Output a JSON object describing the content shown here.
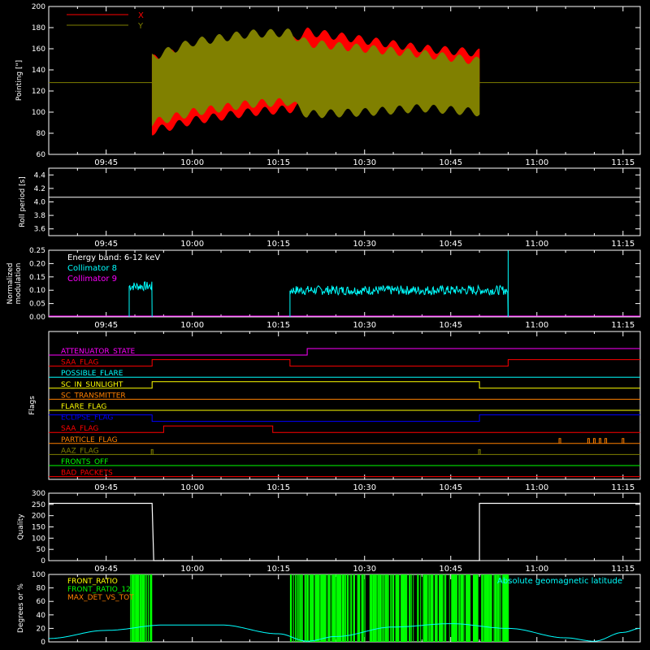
{
  "colors": {
    "background": "#000000",
    "axis": "#ffffff",
    "x": "#ff0000",
    "y": "#808000",
    "cyan": "#00ffff",
    "magenta": "#ff00ff",
    "green": "#00ff00",
    "orange": "#ff8000",
    "yellow": "#ffff00",
    "blue": "#0000ff",
    "red": "#ff0000",
    "olive": "#808000"
  },
  "time_axis": {
    "start": "09:35",
    "end": "11:18",
    "tick_labels": [
      "09:45",
      "10:00",
      "10:15",
      "10:30",
      "10:45",
      "11:00",
      "11:15"
    ]
  },
  "chart_data": [
    {
      "type": "line",
      "id": "pointing",
      "ylabel": "Pointing [\"]",
      "ylim": [
        60,
        200
      ],
      "yticks": [
        60,
        80,
        100,
        120,
        140,
        160,
        180,
        200
      ],
      "legend": {
        "placement": "top-left"
      },
      "series": [
        {
          "name": "X",
          "color": "#ff0000",
          "x_start": "09:53",
          "x_end": "10:50",
          "points": [
            [
              "09:53",
              82,
              150
            ],
            [
              "10:00",
              92,
              162
            ],
            [
              "10:10",
              100,
              166
            ],
            [
              "10:17",
              103,
              168
            ],
            [
              "10:20",
              108,
              176
            ],
            [
              "10:30",
              118,
              168
            ],
            [
              "10:40",
              124,
              160
            ],
            [
              "10:50",
              128,
              156
            ]
          ]
        },
        {
          "name": "Y",
          "color": "#808000",
          "x_start": "09:53",
          "x_end": "10:50",
          "points": [
            [
              "09:53",
              90,
              152
            ],
            [
              "10:00",
              100,
              166
            ],
            [
              "10:10",
              108,
              174
            ],
            [
              "10:17",
              110,
              175
            ],
            [
              "10:20",
              98,
              165
            ],
            [
              "10:30",
              100,
              160
            ],
            [
              "10:40",
              104,
              155
            ],
            [
              "10:50",
              100,
              148
            ]
          ]
        }
      ],
      "baseline": {
        "value": 128,
        "color": "#808000"
      }
    },
    {
      "type": "line",
      "id": "roll-period",
      "ylabel": "Roll period [s]",
      "ylim": [
        3.5,
        4.5
      ],
      "yticks": [
        3.6,
        3.8,
        4.0,
        4.2,
        4.4
      ],
      "series": [
        {
          "color": "#ffffff",
          "x": [
            "09:35",
            "11:18"
          ],
          "y": [
            4.07,
            4.07
          ]
        }
      ]
    },
    {
      "type": "line",
      "id": "modulation",
      "ylabel": "Normalized modulation",
      "ylim": [
        0,
        0.25
      ],
      "yticks": [
        0.0,
        0.05,
        0.1,
        0.15,
        0.2,
        0.25
      ],
      "annotation": "Energy band: 6-12 keV",
      "series": [
        {
          "name": "Collimator 8",
          "color": "#00ffff",
          "segments": [
            [
              "09:49",
              "09:53",
              0.115
            ],
            [
              "10:17",
              "10:55",
              0.1
            ]
          ],
          "spikes": [
            [
              "10:55",
              0.25
            ]
          ]
        },
        {
          "name": "Collimator 9",
          "color": "#ff00ff",
          "x": [
            "09:35",
            "11:18"
          ],
          "y": [
            0,
            0
          ]
        }
      ]
    },
    {
      "type": "table",
      "id": "flags",
      "ylabel": "Flags",
      "rows": [
        {
          "label": "ATTENUATOR_STATE",
          "color": "#ff00ff",
          "steps": [
            [
              "09:35",
              0
            ],
            [
              "10:20",
              1
            ]
          ]
        },
        {
          "label": "SAA_FLAG",
          "color": "#ff0000",
          "steps": [
            [
              "09:35",
              0
            ],
            [
              "09:53",
              1
            ],
            [
              "10:17",
              0
            ],
            [
              "10:55",
              1
            ]
          ]
        },
        {
          "label": "POSSIBLE_FLARE",
          "color": "#00ffff",
          "steps": [
            [
              "09:35",
              0
            ]
          ]
        },
        {
          "label": "SC_IN_SUNLIGHT",
          "color": "#ffff00",
          "steps": [
            [
              "09:35",
              0
            ],
            [
              "09:53",
              1
            ],
            [
              "10:50",
              0
            ]
          ]
        },
        {
          "label": "SC_TRANSMITTER",
          "color": "#ff8000",
          "steps": [
            [
              "09:35",
              0
            ]
          ]
        },
        {
          "label": "FLARE_FLAG",
          "color": "#ffff00",
          "steps": [
            [
              "09:35",
              0
            ]
          ]
        },
        {
          "label": "ECLIPSE_FLAG",
          "color": "#0000ff",
          "steps": [
            [
              "09:35",
              1
            ],
            [
              "09:53",
              0
            ],
            [
              "10:50",
              1
            ]
          ]
        },
        {
          "label": "SAA_FLAG",
          "color": "#ff0000",
          "steps": [
            [
              "09:35",
              0
            ],
            [
              "09:55",
              1
            ],
            [
              "10:14",
              0
            ]
          ]
        },
        {
          "label": "PARTICLE_FLAG",
          "color": "#ff8000",
          "steps": [
            [
              "09:35",
              0
            ]
          ],
          "pulses": [
            "11:04",
            "11:09",
            "11:10",
            "11:11",
            "11:12",
            "11:15"
          ]
        },
        {
          "label": "AAZ_FLAG",
          "color": "#808000",
          "steps": [
            [
              "09:35",
              0
            ]
          ],
          "pulses": [
            "09:53",
            "10:50"
          ]
        },
        {
          "label": "FRONTS_OFF",
          "color": "#00ff00",
          "steps": [
            [
              "09:35",
              0
            ]
          ]
        },
        {
          "label": "BAD_PACKETS",
          "color": "#ff0000",
          "steps": [
            [
              "09:35",
              0
            ]
          ]
        }
      ]
    },
    {
      "type": "line",
      "id": "quality",
      "ylabel": "Quality",
      "ylim": [
        0,
        300
      ],
      "yticks": [
        0,
        50,
        100,
        150,
        200,
        250,
        300
      ],
      "series": [
        {
          "color": "#ffffff",
          "x": [
            "09:35",
            "09:53",
            "09:53",
            "10:50",
            "10:50",
            "11:18"
          ],
          "y": [
            255,
            255,
            0,
            0,
            255,
            255
          ]
        }
      ]
    },
    {
      "type": "line",
      "id": "degrees",
      "ylabel": "Degrees or %",
      "ylim": [
        0,
        100
      ],
      "yticks": [
        0,
        20,
        40,
        60,
        80,
        100
      ],
      "legend": {
        "placement": "top-left"
      },
      "annotation": "Absolute geomagnetic latitude",
      "series": [
        {
          "name": "FRONT_RATIO",
          "color": "#ffff00"
        },
        {
          "name": "FRONT_RATIO_12",
          "color": "#00ff00",
          "bands": [
            [
              "09:49",
              "09:53"
            ],
            [
              "10:17",
              "10:55"
            ]
          ]
        },
        {
          "name": "MAX_DET_VS_TOT",
          "color": "#ff8000"
        },
        {
          "color": "#00ffff",
          "x": [
            "09:35",
            "09:45",
            "09:55",
            "10:05",
            "10:15",
            "10:20",
            "10:25",
            "10:35",
            "10:45",
            "10:55",
            "11:05",
            "11:10",
            "11:15",
            "11:18"
          ],
          "y": [
            5,
            17,
            25,
            25,
            12,
            1,
            8,
            22,
            27,
            20,
            6,
            1,
            14,
            20
          ]
        }
      ]
    }
  ]
}
